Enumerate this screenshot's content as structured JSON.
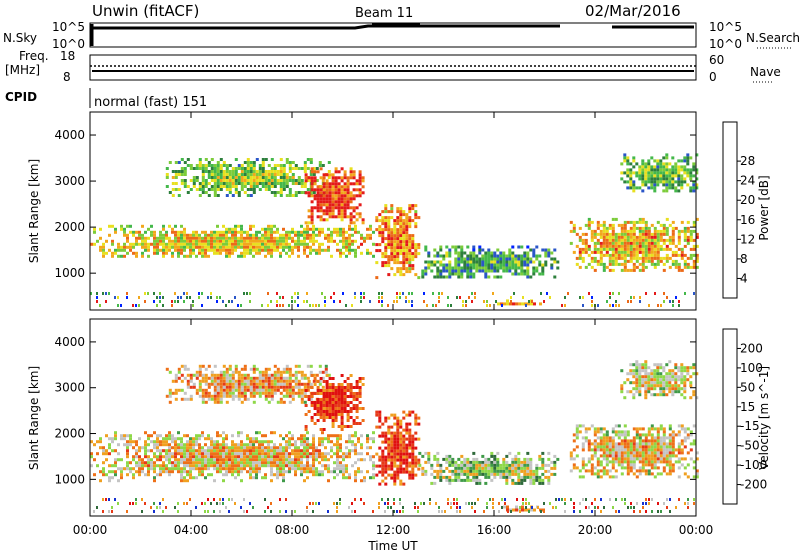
{
  "header": {
    "title": "Unwin (fitACF)",
    "beam": "Beam 11",
    "date": "02/Mar/2016"
  },
  "top_panel": {
    "nsky_label": "N.Sky",
    "nsky_ticks": [
      "10^5",
      "10^0"
    ],
    "nsearch_label": "N.Search",
    "nsearch_ticks": [
      "10^5",
      "10^0"
    ],
    "freq_label": "Freq.",
    "freq_unit": "[MHz]",
    "freq_ticks": [
      "18",
      "8"
    ],
    "nave_label": "Nave",
    "nave_ticks": [
      "60",
      "0"
    ],
    "cpid_label": "CPID",
    "cpid_value": "normal (fast) 151"
  },
  "chart_data": [
    {
      "type": "heatmap",
      "name": "power",
      "ylabel": "Slant Range [km]",
      "y_ticks": [
        "1000",
        "2000",
        "3000",
        "4000"
      ],
      "ylim": [
        200,
        4500
      ],
      "colorbar_label": "Power [dB]",
      "colorbar_ticks": [
        "4",
        "8",
        "12",
        "16",
        "20",
        "24",
        "28"
      ],
      "colors": [
        "#0022ff",
        "#2a55c8",
        "#2d7f3c",
        "#44b84a",
        "#7ccc3a",
        "#e8e020",
        "#f2a81c",
        "#ec6a18",
        "#e41a1a"
      ],
      "echo_regions": [
        {
          "t0": 0.0,
          "t1": 11.2,
          "r0": 1350,
          "r1": 2050,
          "level": 0.58
        },
        {
          "t0": 3.0,
          "t1": 9.5,
          "r0": 2700,
          "r1": 3500,
          "level": 0.4
        },
        {
          "t0": 8.5,
          "t1": 10.8,
          "r0": 2100,
          "r1": 3300,
          "level": 0.85
        },
        {
          "t0": 11.3,
          "t1": 13.0,
          "r0": 900,
          "r1": 2500,
          "level": 0.72
        },
        {
          "t0": 13.0,
          "t1": 18.5,
          "r0": 900,
          "r1": 1600,
          "level": 0.3
        },
        {
          "t0": 19.0,
          "t1": 24.0,
          "r0": 1050,
          "r1": 2200,
          "level": 0.62
        },
        {
          "t0": 21.0,
          "t1": 24.0,
          "r0": 2800,
          "r1": 3600,
          "level": 0.35
        },
        {
          "t0": 16.0,
          "t1": 18.0,
          "r0": 330,
          "r1": 430,
          "level": 0.7
        }
      ]
    },
    {
      "type": "heatmap",
      "name": "velocity",
      "ylabel": "Slant Range [km]",
      "y_ticks": [
        "1000",
        "2000",
        "3000",
        "4000"
      ],
      "ylim": [
        200,
        4500
      ],
      "colorbar_label": "Velocity [m s^-1]",
      "colorbar_ticks": [
        "200",
        "100",
        "50",
        "15",
        "-15",
        "-50",
        "-100",
        "-200"
      ],
      "colors": [
        "#1530d0",
        "#2f6a3a",
        "#3f9a48",
        "#8ed848",
        "#c4c4c4",
        "#f0a020",
        "#ee7018",
        "#e63a18",
        "#e01010"
      ],
      "echo_regions": [
        {
          "t0": 0.0,
          "t1": 11.2,
          "r0": 1000,
          "r1": 2050,
          "level": 0.5
        },
        {
          "t0": 3.0,
          "t1": 9.5,
          "r0": 2700,
          "r1": 3500,
          "level": 0.55
        },
        {
          "t0": 8.5,
          "t1": 10.8,
          "r0": 2100,
          "r1": 3300,
          "level": 0.8
        },
        {
          "t0": 11.3,
          "t1": 13.0,
          "r0": 900,
          "r1": 2500,
          "level": 0.78
        },
        {
          "t0": 13.0,
          "t1": 18.5,
          "r0": 900,
          "r1": 1600,
          "level": 0.35
        },
        {
          "t0": 19.0,
          "t1": 24.0,
          "r0": 1050,
          "r1": 2200,
          "level": 0.5
        },
        {
          "t0": 21.0,
          "t1": 24.0,
          "r0": 2800,
          "r1": 3600,
          "level": 0.45
        },
        {
          "t0": 16.0,
          "t1": 18.0,
          "r0": 330,
          "r1": 430,
          "level": 0.65
        }
      ]
    }
  ],
  "x_axis": {
    "label": "Time UT",
    "ticks": [
      "00:00",
      "04:00",
      "08:00",
      "12:00",
      "16:00",
      "20:00",
      "00:00"
    ]
  }
}
